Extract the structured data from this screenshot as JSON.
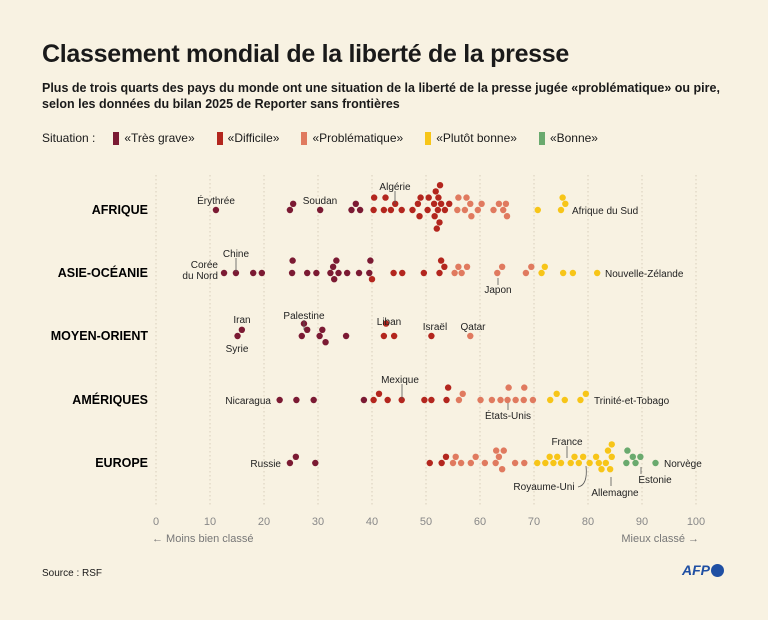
{
  "title": "Classement mondial de la liberté de la presse",
  "subtitle": "Plus de trois quarts des pays du monde ont une situation de la liberté de la presse jugée «problématique» ou pire, selon les données du bilan 2025 de Reporter sans frontières",
  "legend": {
    "label": "Situation :",
    "items": [
      {
        "label": "«Très grave»",
        "color": "#7b1a33"
      },
      {
        "label": "«Difficile»",
        "color": "#b3261e"
      },
      {
        "label": "«Problématique»",
        "color": "#e07a5f"
      },
      {
        "label": "«Plutôt bonne»",
        "color": "#f7c518"
      },
      {
        "label": "«Bonne»",
        "color": "#6aaa6e"
      }
    ]
  },
  "source": "Source : RSF",
  "logo": "AFP",
  "chart_data": {
    "type": "scatter",
    "subtype": "beeswarm",
    "xlim": [
      0,
      100
    ],
    "xticks": [
      0,
      10,
      20,
      30,
      40,
      50,
      60,
      70,
      80,
      90,
      100
    ],
    "xlabel_left": "← Moins bien classé",
    "xlabel_right": "Mieux classé →",
    "grid": "vertical dotted",
    "thresholds": [
      40,
      55,
      70,
      85
    ],
    "rows": [
      {
        "region": "AFRIQUE",
        "scores": [
          11.1,
          24.8,
          25.4,
          30.4,
          36.2,
          37,
          37.8,
          40.3,
          40.4,
          42.2,
          42.5,
          43.5,
          44.3,
          45.5,
          47.5,
          48.5,
          48.8,
          49,
          50.3,
          50.5,
          51.5,
          51.6,
          51.8,
          52,
          52.2,
          52.3,
          52.5,
          52.6,
          52.8,
          53.5,
          54.3,
          55.8,
          56,
          57.2,
          57.5,
          58.2,
          58.4,
          59.6,
          60.3,
          62.5,
          63.5,
          64.3,
          64.8,
          65,
          70.7,
          75,
          75.3,
          75.8
        ],
        "labels": [
          {
            "text": "Érythrée",
            "score": 11.1
          },
          {
            "text": "Soudan",
            "score": 30.4
          },
          {
            "text": "Algérie",
            "score": 42.5
          },
          {
            "text": "Afrique du Sud",
            "score": 75.8
          }
        ]
      },
      {
        "region": "ASIE-OCÉANIE",
        "scores": [
          12.6,
          14.8,
          18,
          19.6,
          25.2,
          25.3,
          28,
          29.7,
          32.3,
          32.8,
          33,
          33.4,
          33.8,
          35.4,
          37.6,
          39.5,
          39.7,
          40,
          44,
          45.6,
          49.6,
          52.5,
          52.8,
          53.4,
          55.3,
          56,
          56.6,
          57.6,
          63.2,
          64.1,
          68.5,
          69.5,
          71.4,
          72,
          75.4,
          77.2,
          81.7
        ],
        "labels": [
          {
            "text": "Corée du Nord",
            "score": 12.6
          },
          {
            "text": "Chine",
            "score": 14.8
          },
          {
            "text": "Japon",
            "score": 63.2
          },
          {
            "text": "Nouvelle-Zélande",
            "score": 81.7
          }
        ]
      },
      {
        "region": "MOYEN-ORIENT",
        "scores": [
          15.1,
          15.9,
          27,
          27.4,
          28,
          30.3,
          30.8,
          31.4,
          35.2,
          42.2,
          42.6,
          44.1,
          51,
          58.2
        ],
        "labels": [
          {
            "text": "Iran",
            "score": 15.9
          },
          {
            "text": "Syrie",
            "score": 15.1
          },
          {
            "text": "Palestine",
            "score": 27.4
          },
          {
            "text": "Liban",
            "score": 42.6
          },
          {
            "text": "Israël",
            "score": 51
          },
          {
            "text": "Qatar",
            "score": 58.2
          }
        ]
      },
      {
        "region": "AMÉRIQUES",
        "scores": [
          22.9,
          26,
          29.2,
          38.5,
          40.3,
          41.3,
          42.9,
          45.5,
          49.7,
          51,
          53.8,
          54.1,
          56.1,
          56.8,
          60.1,
          62.2,
          63.8,
          65.1,
          65.3,
          66.6,
          68.1,
          68.2,
          69.8,
          73,
          74.2,
          75.7,
          78.6,
          79.6
        ],
        "labels": [
          {
            "text": "Nicaragua",
            "score": 22.9
          },
          {
            "text": "Mexique",
            "score": 45.5
          },
          {
            "text": "États-Unis",
            "score": 65.3
          },
          {
            "text": "Trinité-et-Tobago",
            "score": 79.6
          }
        ]
      },
      {
        "region": "EUROPE",
        "scores": [
          24.8,
          25.9,
          29.5,
          50.7,
          52.9,
          53.7,
          55,
          55.5,
          56.5,
          58.3,
          59.2,
          60.9,
          62.9,
          63,
          63.5,
          64.1,
          64.4,
          66.5,
          68.2,
          70.6,
          72.1,
          72.9,
          73.6,
          74.3,
          75,
          76.8,
          77.5,
          78.3,
          79.1,
          80.3,
          81.5,
          82,
          82.5,
          83.3,
          83.7,
          84.1,
          84.4,
          84.4,
          87.1,
          87.3,
          88.3,
          88.8,
          89.7,
          92.5
        ],
        "labels": [
          {
            "text": "Russie",
            "score": 24.8
          },
          {
            "text": "France",
            "score": 76.8
          },
          {
            "text": "Royaume-Uni",
            "score": 79.1
          },
          {
            "text": "Allemagne",
            "score": 84.1
          },
          {
            "text": "Estonie",
            "score": 89.7
          },
          {
            "text": "Norvège",
            "score": 92.5
          }
        ]
      }
    ]
  }
}
